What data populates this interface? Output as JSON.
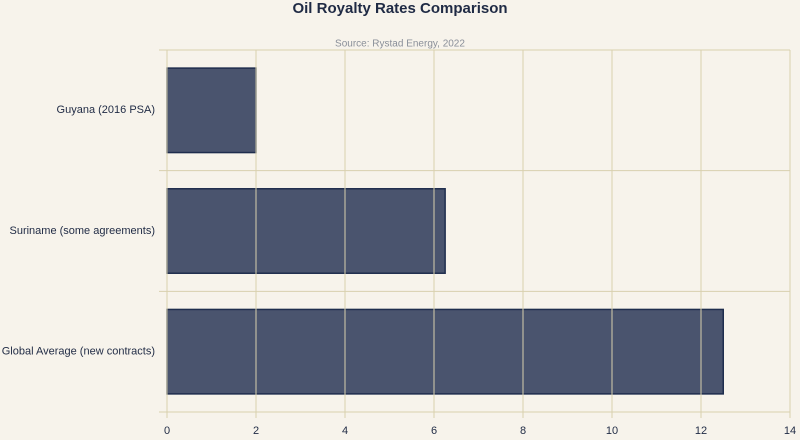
{
  "chart_data": {
    "type": "bar",
    "orientation": "horizontal",
    "title": "Oil Royalty Rates Comparison",
    "subtitle": "Source: Rystad Energy, 2022",
    "categories": [
      "Guyana (2016 PSA)",
      "Suriname (some agreements)",
      "Global Average (new contracts)"
    ],
    "values": [
      2,
      6.25,
      12.5
    ],
    "color": "#4a546e",
    "xlim": [
      0,
      14
    ],
    "xticks": [
      0,
      2,
      4,
      6,
      8,
      10,
      12,
      14
    ],
    "grid": true
  }
}
